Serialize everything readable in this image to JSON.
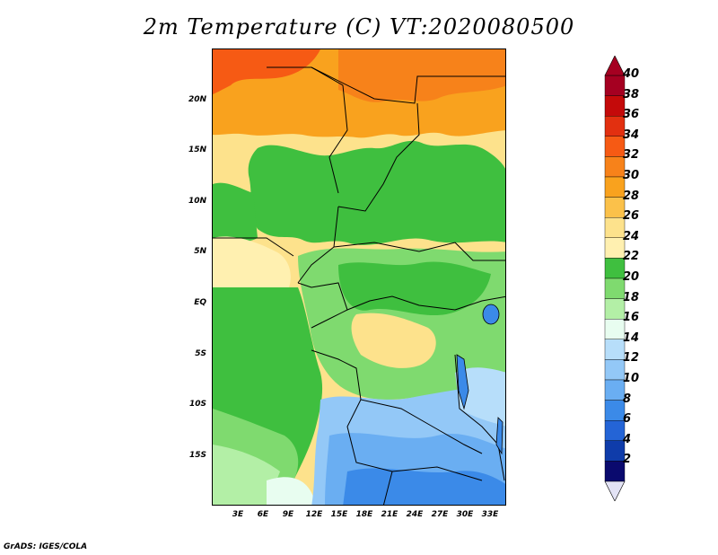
{
  "title": "2m Temperature (C) VT:2020080500",
  "credit": "GrADS: IGES/COLA",
  "latitude_labels": [
    "20N",
    "15N",
    "10N",
    "5N",
    "EQ",
    "5S",
    "10S",
    "15S"
  ],
  "longitude_labels": [
    "3E",
    "6E",
    "9E",
    "12E",
    "15E",
    "18E",
    "21E",
    "24E",
    "27E",
    "30E",
    "33E"
  ],
  "colorbar": {
    "labels": [
      "40",
      "38",
      "36",
      "34",
      "32",
      "30",
      "28",
      "26",
      "24",
      "22",
      "20",
      "18",
      "16",
      "14",
      "12",
      "10",
      "8",
      "6",
      "4",
      "2"
    ],
    "colors": [
      "#a50021",
      "#c40a0a",
      "#e23010",
      "#f65a14",
      "#f7821a",
      "#f9a21e",
      "#fbc14a",
      "#fde28c",
      "#fff0b0",
      "#3fbf3f",
      "#7fda6f",
      "#b3efa6",
      "#e8fdf0",
      "#b7defa",
      "#93c8f7",
      "#6aaef2",
      "#3b8ae8",
      "#2464d6",
      "#0f3caa",
      "#0a0a6e"
    ],
    "low_arrow_color": "#e3e3f5",
    "high_arrow_color": "#a50021"
  },
  "map": {
    "variable": "2m Temperature",
    "units": "C",
    "valid_time": "2020080500"
  }
}
